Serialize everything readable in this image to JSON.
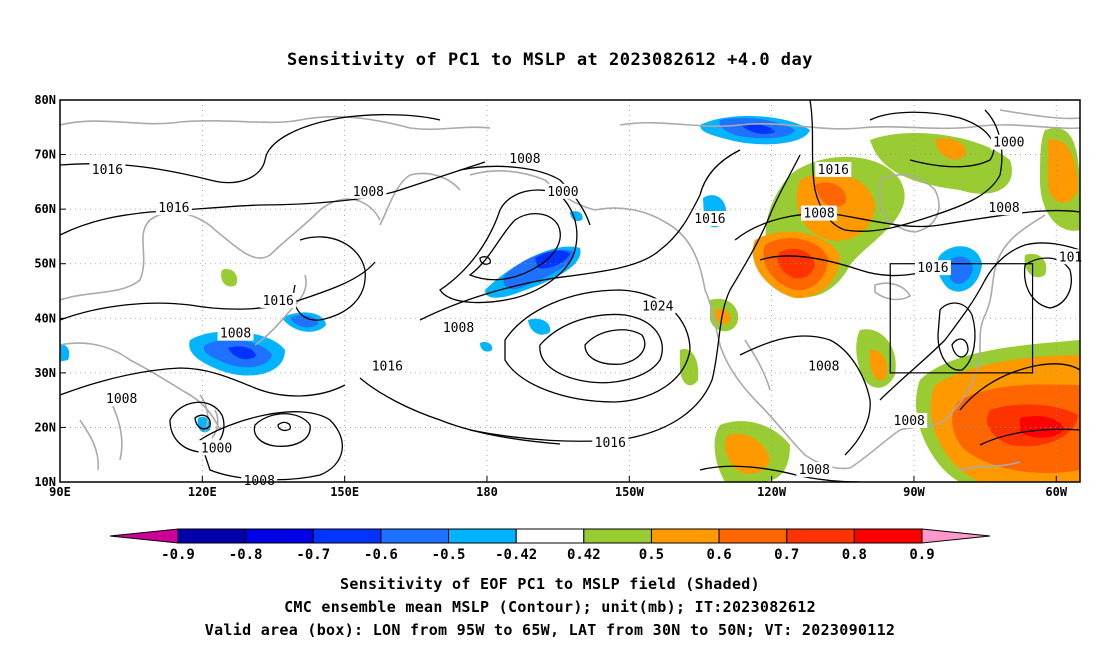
{
  "title": "Sensitivity of PC1 to MSLP at 2023082612 +4.0 day",
  "map": {
    "lon_range": [
      90,
      305
    ],
    "lat_range": [
      10,
      80
    ],
    "lat_ticks": [
      {
        "value": 80,
        "label": "80N"
      },
      {
        "value": 70,
        "label": "70N"
      },
      {
        "value": 60,
        "label": "60N"
      },
      {
        "value": 50,
        "label": "50N"
      },
      {
        "value": 40,
        "label": "40N"
      },
      {
        "value": 30,
        "label": "30N"
      },
      {
        "value": 20,
        "label": "20N"
      },
      {
        "value": 10,
        "label": "10N"
      }
    ],
    "lon_ticks": [
      {
        "value": 90,
        "label": "90E"
      },
      {
        "value": 120,
        "label": "120E"
      },
      {
        "value": 150,
        "label": "150E"
      },
      {
        "value": 180,
        "label": "180"
      },
      {
        "value": 210,
        "label": "150W"
      },
      {
        "value": 240,
        "label": "120W"
      },
      {
        "value": 270,
        "label": "90W"
      },
      {
        "value": 300,
        "label": "60W"
      }
    ],
    "grid": "dotted",
    "valid_box": {
      "lon": [
        265,
        295
      ],
      "lat": [
        30,
        50
      ]
    },
    "contour_labels": [
      {
        "text": "1016",
        "lon": 100,
        "lat": 67
      },
      {
        "text": "1016",
        "lon": 114,
        "lat": 60
      },
      {
        "text": "1008",
        "lon": 155,
        "lat": 63
      },
      {
        "text": "1008",
        "lon": 188,
        "lat": 69
      },
      {
        "text": "1000",
        "lon": 196,
        "lat": 63
      },
      {
        "text": "1016",
        "lon": 227,
        "lat": 58
      },
      {
        "text": "1016",
        "lon": 253,
        "lat": 67
      },
      {
        "text": "1008",
        "lon": 250,
        "lat": 59
      },
      {
        "text": "1000",
        "lon": 290,
        "lat": 72
      },
      {
        "text": "1008",
        "lon": 289,
        "lat": 60
      },
      {
        "text": "1016",
        "lon": 274,
        "lat": 49
      },
      {
        "text": "101",
        "lon": 303,
        "lat": 51
      },
      {
        "text": "1016",
        "lon": 136,
        "lat": 43
      },
      {
        "text": "1008",
        "lon": 127,
        "lat": 37
      },
      {
        "text": "1008",
        "lon": 174,
        "lat": 38
      },
      {
        "text": "1024",
        "lon": 216,
        "lat": 42
      },
      {
        "text": "1016",
        "lon": 159,
        "lat": 31
      },
      {
        "text": "1008",
        "lon": 103,
        "lat": 25
      },
      {
        "text": "1000",
        "lon": 123,
        "lat": 16
      },
      {
        "text": "1008",
        "lon": 132,
        "lat": 10
      },
      {
        "text": "1016",
        "lon": 206,
        "lat": 17
      },
      {
        "text": "1008",
        "lon": 251,
        "lat": 31
      },
      {
        "text": "1008",
        "lon": 269,
        "lat": 21
      },
      {
        "text": "1008",
        "lon": 249,
        "lat": 12
      }
    ]
  },
  "colorbar": {
    "levels": [
      "-0.9",
      "-0.8",
      "-0.7",
      "-0.6",
      "-0.5",
      "-0.42",
      "0.42",
      "0.5",
      "0.6",
      "0.7",
      "0.8",
      "0.9"
    ],
    "colors": [
      "#cc0099",
      "#0000aa",
      "#0000e6",
      "#0033ff",
      "#1e72ff",
      "#00b4ff",
      "#ffffff",
      "#99cc33",
      "#ff9900",
      "#ff6600",
      "#ff3300",
      "#ff0000",
      "#ff99cc"
    ]
  },
  "captions": [
    "Sensitivity of EOF PC1 to MSLP field (Shaded)",
    "CMC ensemble mean MSLP (Contour); unit(mb); IT:2023082612",
    "Valid area (box): LON from 95W to 65W, LAT from 30N to 50N; VT: 2023090112"
  ]
}
